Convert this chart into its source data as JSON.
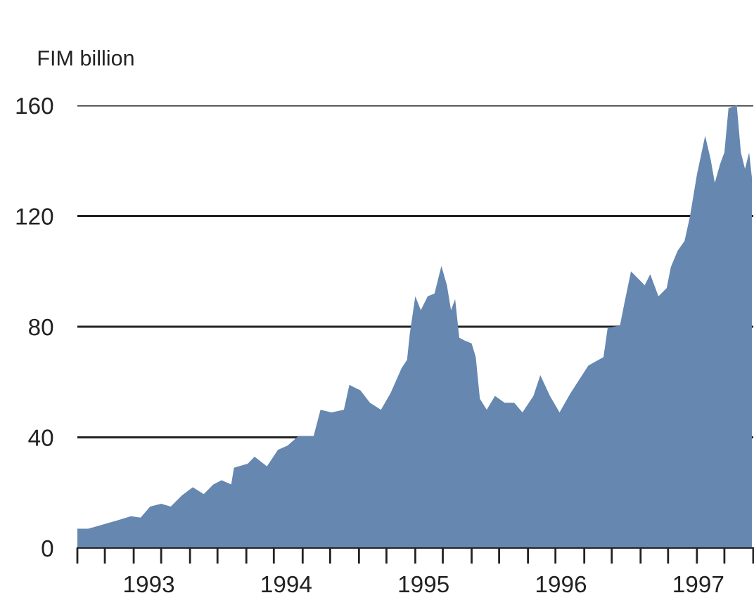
{
  "chart_data": {
    "type": "area",
    "ylabel": "FIM billion",
    "color": "#6587b0",
    "x": [
      1992.98,
      1993.06,
      1993.27,
      1993.37,
      1993.44,
      1993.51,
      1993.59,
      1993.66,
      1993.74,
      1993.82,
      1993.9,
      1993.97,
      1994.03,
      1994.1,
      1994.12,
      1994.22,
      1994.27,
      1994.36,
      1994.44,
      1994.51,
      1994.59,
      1994.7,
      1994.75,
      1994.83,
      1994.92,
      1994.96,
      1995.04,
      1995.11,
      1995.19,
      1995.26,
      1995.34,
      1995.38,
      1995.4,
      1995.44,
      1995.48,
      1995.53,
      1995.58,
      1995.63,
      1995.67,
      1995.7,
      1995.73,
      1995.76,
      1995.8,
      1995.85,
      1995.88,
      1995.91,
      1995.96,
      1996.02,
      1996.09,
      1996.16,
      1996.22,
      1996.3,
      1996.35,
      1996.42,
      1996.49,
      1996.57,
      1996.7,
      1996.81,
      1996.84,
      1996.93,
      1996.96,
      1997.01,
      1997.11,
      1997.15,
      1997.21,
      1997.27,
      1997.3,
      1997.35,
      1997.4,
      1997.44,
      1997.49,
      1997.55,
      1997.59,
      1997.62,
      1997.66,
      1997.69,
      1997.72,
      1997.78,
      1997.81,
      1997.84,
      1997.87,
      1997.89
    ],
    "values": [
      7,
      7,
      10,
      11.5,
      11,
      15,
      16,
      15,
      19,
      22,
      19.5,
      23,
      24.5,
      23,
      29,
      30.5,
      33,
      29.5,
      35.5,
      37,
      40.5,
      40.5,
      50,
      49,
      50,
      59,
      57,
      52.5,
      50,
      56,
      65,
      68,
      77.5,
      91,
      86,
      91,
      92,
      102,
      95,
      86,
      90,
      76,
      75,
      74,
      69,
      54,
      50,
      55,
      52.5,
      52.5,
      49,
      55,
      62.5,
      55,
      49,
      56,
      66,
      69,
      79.5,
      80.5,
      88,
      100,
      95,
      99,
      91,
      94,
      101.5,
      107.5,
      111,
      120,
      135,
      149,
      140.5,
      132,
      139,
      143,
      159,
      160,
      143,
      137,
      143,
      134
    ],
    "xlim": [
      1992.98,
      1997.9
    ],
    "ylim": [
      0,
      160
    ],
    "yticks": [
      0,
      40,
      80,
      120,
      160
    ],
    "xticks": [
      {
        "value": 1992.98,
        "label": null
      },
      {
        "value": 1993.18,
        "label": null
      },
      {
        "value": 1993.39,
        "label": null
      },
      {
        "value": 1993.59,
        "label": null
      },
      {
        "value": 1993.8,
        "label": null
      },
      {
        "value": 1994.0,
        "label": null
      },
      {
        "value": 1994.21,
        "label": null
      },
      {
        "value": 1994.41,
        "label": null
      },
      {
        "value": 1994.62,
        "label": null
      },
      {
        "value": 1994.82,
        "label": null
      },
      {
        "value": 1995.03,
        "label": null
      },
      {
        "value": 1995.23,
        "label": null
      },
      {
        "value": 1995.44,
        "label": null
      },
      {
        "value": 1995.64,
        "label": null
      },
      {
        "value": 1995.85,
        "label": null
      },
      {
        "value": 1996.05,
        "label": null
      },
      {
        "value": 1996.26,
        "label": null
      },
      {
        "value": 1996.46,
        "label": null
      },
      {
        "value": 1996.67,
        "label": null
      },
      {
        "value": 1996.87,
        "label": null
      },
      {
        "value": 1997.08,
        "label": null
      },
      {
        "value": 1997.28,
        "label": null
      },
      {
        "value": 1997.49,
        "label": null
      },
      {
        "value": 1997.69,
        "label": null
      },
      {
        "value": 1997.9,
        "label": null
      },
      {
        "value": 1993.5,
        "label": "1993"
      },
      {
        "value": 1994.5,
        "label": "1994"
      },
      {
        "value": 1995.5,
        "label": "1995"
      },
      {
        "value": 1996.5,
        "label": "1996"
      },
      {
        "value": 1997.5,
        "label": "1997"
      }
    ],
    "grid": "y"
  }
}
